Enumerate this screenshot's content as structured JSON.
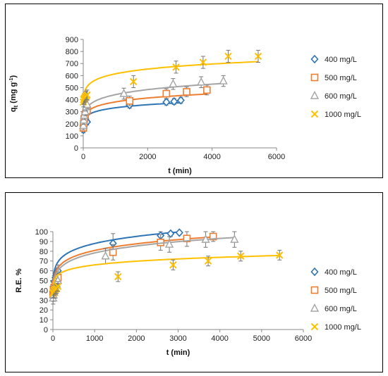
{
  "chart_data": [
    {
      "type": "scatter",
      "title": "",
      "xlabel": "t (min)",
      "ylabel": "q",
      "ylabel_sub": "t",
      "ylabel_unit": " (mg g",
      "ylabel_sup": "-1",
      "ylabel_close": ")",
      "xlim": [
        0,
        6000
      ],
      "ylim": [
        0,
        900
      ],
      "xticks": [
        "0",
        "2000",
        "4000",
        "6000"
      ],
      "yticks": [
        "0",
        "100",
        "200",
        "300",
        "400",
        "500",
        "600",
        "700",
        "800",
        "900"
      ],
      "grid": false,
      "legend_position": "right",
      "series": [
        {
          "name": "400 mg/L",
          "marker": "diamond",
          "color": "#2E75B6",
          "x": [
            5,
            15,
            30,
            60,
            90,
            120,
            1440,
            2580,
            2820,
            3030
          ],
          "y": [
            150,
            175,
            195,
            210,
            225,
            215,
            355,
            380,
            385,
            395
          ],
          "err": [
            25,
            25,
            25,
            25,
            25,
            25,
            25,
            25,
            25,
            25
          ],
          "fit": {
            "a": 160,
            "b": 0.106
          }
        },
        {
          "name": "500 mg/L",
          "marker": "square",
          "color": "#ED7D31",
          "x": [
            5,
            15,
            30,
            60,
            90,
            120,
            1440,
            2580,
            3210,
            3840
          ],
          "y": [
            165,
            200,
            240,
            275,
            300,
            310,
            390,
            450,
            465,
            480
          ],
          "err": [
            30,
            30,
            30,
            30,
            30,
            30,
            40,
            40,
            40,
            40
          ],
          "fit": {
            "a": 170,
            "b": 0.117
          }
        },
        {
          "name": "600 mg/L",
          "marker": "triangle",
          "color": "#A5A5A5",
          "x": [
            5,
            15,
            30,
            60,
            90,
            120,
            1260,
            2790,
            3660,
            4350
          ],
          "y": [
            185,
            230,
            270,
            300,
            340,
            360,
            450,
            530,
            545,
            555
          ],
          "err": [
            35,
            35,
            35,
            35,
            35,
            35,
            45,
            45,
            45,
            45
          ],
          "fit": {
            "a": 180,
            "b": 0.13
          }
        },
        {
          "name": "1000 mg/L",
          "marker": "x",
          "color": "#FFC000",
          "x": [
            5,
            15,
            30,
            60,
            90,
            120,
            1560,
            2880,
            3720,
            4500,
            5430
          ],
          "y": [
            380,
            400,
            410,
            420,
            430,
            440,
            550,
            670,
            710,
            760,
            760
          ],
          "err": [
            40,
            40,
            40,
            40,
            40,
            40,
            50,
            50,
            50,
            50,
            50
          ],
          "fit": {
            "a": 330,
            "b": 0.09
          }
        }
      ]
    },
    {
      "type": "scatter",
      "title": "",
      "xlabel": "t (min)",
      "ylabel": "R.E. %",
      "xlim": [
        0,
        6000
      ],
      "ylim": [
        0,
        100
      ],
      "xticks": [
        "0",
        "1000",
        "2000",
        "3000",
        "4000",
        "5000",
        "6000"
      ],
      "yticks": [
        "0",
        "10",
        "20",
        "30",
        "40",
        "50",
        "60",
        "70",
        "80",
        "90",
        "100"
      ],
      "grid": false,
      "legend_position": "right",
      "series": [
        {
          "name": "400 mg/L",
          "marker": "diamond",
          "color": "#2E75B6",
          "x": [
            5,
            15,
            30,
            60,
            90,
            120,
            1440,
            2580,
            2820,
            3030
          ],
          "y": [
            38,
            44,
            49,
            53,
            57,
            60,
            88,
            96,
            98,
            99
          ],
          "err": [
            6,
            6,
            6,
            6,
            6,
            6,
            10,
            4,
            3,
            2
          ],
          "fit": {
            "a": 40,
            "b": 0.114
          }
        },
        {
          "name": "500 mg/L",
          "marker": "square",
          "color": "#ED7D31",
          "x": [
            5,
            15,
            30,
            60,
            90,
            120,
            1440,
            2580,
            3210,
            3840
          ],
          "y": [
            36,
            40,
            43,
            46,
            50,
            53,
            79,
            89,
            93,
            95
          ],
          "err": [
            6,
            6,
            6,
            6,
            6,
            6,
            8,
            8,
            8,
            5
          ],
          "fit": {
            "a": 36,
            "b": 0.117
          }
        },
        {
          "name": "600 mg/L",
          "marker": "triangle",
          "color": "#A5A5A5",
          "x": [
            5,
            15,
            30,
            60,
            90,
            120,
            1260,
            2790,
            3660,
            4350
          ],
          "y": [
            32,
            35,
            38,
            42,
            46,
            50,
            75,
            87,
            92,
            92
          ],
          "err": [
            6,
            6,
            6,
            6,
            6,
            6,
            8,
            8,
            8,
            8
          ],
          "fit": {
            "a": 33,
            "b": 0.125
          }
        },
        {
          "name": "1000 mg/L",
          "marker": "x",
          "color": "#FFC000",
          "x": [
            5,
            15,
            30,
            60,
            90,
            120,
            1560,
            2880,
            3720,
            4500,
            5430
          ],
          "y": [
            37,
            38,
            40,
            41,
            42,
            44,
            54,
            66,
            70,
            75,
            76
          ],
          "err": [
            5,
            5,
            5,
            5,
            5,
            5,
            5,
            5,
            5,
            5,
            5
          ],
          "fit": {
            "a": 38,
            "b": 0.08
          }
        }
      ]
    }
  ]
}
